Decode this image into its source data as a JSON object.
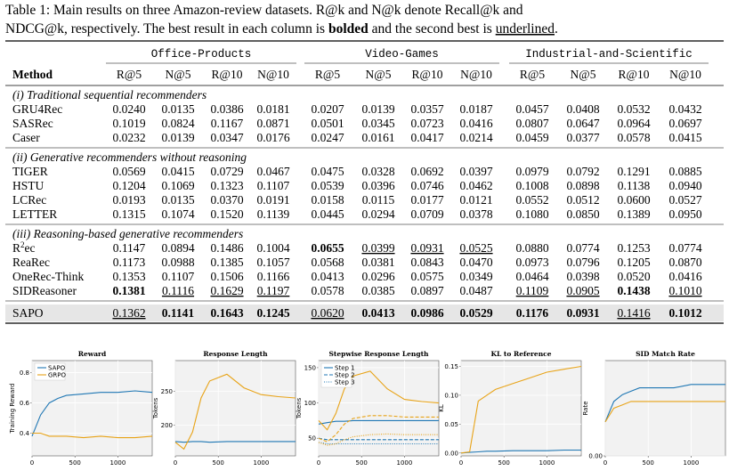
{
  "caption": [
    [
      {
        "text": "Table 1: Main results on three Amazon-review datasets. R@k and N@k denote Recall@k and"
      }
    ],
    [
      {
        "text": "NDCG@k, respectively. The best result in each column is "
      },
      {
        "text": "bolded",
        "style": "bold"
      },
      {
        "text": " and the second best is "
      },
      {
        "text": "underlined",
        "style": "underline"
      },
      {
        "text": "."
      }
    ]
  ],
  "table": {
    "method": "Method",
    "datasets": [
      "Office-Products",
      "Video-Games",
      "Industrial-and-Scientific"
    ],
    "metrics": [
      "R@5",
      "N@5",
      "R@10",
      "N@10"
    ],
    "groups": [
      {
        "label": "(i) Traditional sequential recommenders",
        "rows": [
          {
            "name": "GRU4Rec",
            "values": [
              "0.0240",
              "0.0135",
              "0.0386",
              "0.0181",
              "0.0207",
              "0.0139",
              "0.0357",
              "0.0187",
              "0.0457",
              "0.0408",
              "0.0532",
              "0.0432"
            ]
          },
          {
            "name": "SASRec",
            "values": [
              "0.1019",
              "0.0824",
              "0.1167",
              "0.0871",
              "0.0501",
              "0.0345",
              "0.0723",
              "0.0416",
              "0.0807",
              "0.0647",
              "0.0964",
              "0.0697"
            ]
          },
          {
            "name": "Caser",
            "values": [
              "0.0232",
              "0.0139",
              "0.0347",
              "0.0176",
              "0.0247",
              "0.0161",
              "0.0417",
              "0.0214",
              "0.0459",
              "0.0377",
              "0.0578",
              "0.0415"
            ]
          }
        ]
      },
      {
        "label": "(ii) Generative recommenders without reasoning",
        "rows": [
          {
            "name": "TIGER",
            "values": [
              "0.0569",
              "0.0415",
              "0.0729",
              "0.0467",
              "0.0475",
              "0.0328",
              "0.0692",
              "0.0397",
              "0.0979",
              "0.0792",
              "0.1291",
              "0.0885"
            ]
          },
          {
            "name": "HSTU",
            "values": [
              "0.1204",
              "0.1069",
              "0.1323",
              "0.1107",
              "0.0539",
              "0.0396",
              "0.0746",
              "0.0462",
              "0.1008",
              "0.0898",
              "0.1138",
              "0.0940"
            ]
          },
          {
            "name": "LCRec",
            "values": [
              "0.0193",
              "0.0135",
              "0.0370",
              "0.0191",
              "0.0158",
              "0.0115",
              "0.0177",
              "0.0121",
              "0.0552",
              "0.0512",
              "0.0600",
              "0.0527"
            ]
          },
          {
            "name": "LETTER",
            "values": [
              "0.1315",
              "0.1074",
              "0.1520",
              "0.1139",
              "0.0445",
              "0.0294",
              "0.0709",
              "0.0378",
              "0.1080",
              "0.0850",
              "0.1389",
              "0.0950"
            ]
          }
        ]
      },
      {
        "label": "(iii) Reasoning-based generative recommenders",
        "rows": [
          {
            "name": [
              "R",
              "2",
              "ec"
            ],
            "values": [
              "0.1147",
              "0.0894",
              "0.1486",
              "0.1004",
              "0.0655",
              "0.0399",
              "0.0931",
              "0.0525",
              "0.0880",
              "0.0774",
              "0.1253",
              "0.0774"
            ],
            "bold": [
              4
            ],
            "underline": [
              5,
              6,
              7
            ]
          },
          {
            "name": "ReaRec",
            "values": [
              "0.1173",
              "0.0988",
              "0.1385",
              "0.1057",
              "0.0568",
              "0.0381",
              "0.0843",
              "0.0470",
              "0.0973",
              "0.0796",
              "0.1205",
              "0.0870"
            ]
          },
          {
            "name": "OneRec-Think",
            "values": [
              "0.1353",
              "0.1107",
              "0.1506",
              "0.1166",
              "0.0413",
              "0.0296",
              "0.0575",
              "0.0349",
              "0.0464",
              "0.0398",
              "0.0520",
              "0.0416"
            ]
          },
          {
            "name": "SIDReasoner",
            "values": [
              "0.1381",
              "0.1116",
              "0.1629",
              "0.1197",
              "0.0578",
              "0.0385",
              "0.0897",
              "0.0487",
              "0.1109",
              "0.0905",
              "0.1438",
              "0.1010"
            ],
            "bold": [
              0,
              10
            ],
            "underline": [
              1,
              2,
              3,
              8,
              9,
              11
            ]
          }
        ]
      },
      {
        "highlight": true,
        "rows": [
          {
            "name": "SAPO",
            "values": [
              "0.1362",
              "0.1141",
              "0.1643",
              "0.1245",
              "0.0620",
              "0.0413",
              "0.0986",
              "0.0529",
              "0.1176",
              "0.0931",
              "0.1416",
              "0.1012"
            ],
            "bold": [
              1,
              2,
              3,
              5,
              6,
              7,
              8,
              9,
              11
            ],
            "underline": [
              0,
              4,
              10
            ]
          }
        ]
      }
    ]
  },
  "chart_data": [
    {
      "type": "line",
      "title": "Reward",
      "ylabel": "Training Reward",
      "x": [
        0,
        100,
        200,
        300,
        400,
        600,
        800,
        1000,
        1200,
        1400
      ],
      "xlim": [
        0,
        1400
      ],
      "xticks": [
        0,
        500,
        1000
      ],
      "ylim": [
        0.25,
        0.88
      ],
      "yticks": [
        0.4,
        0.6,
        0.8
      ],
      "grid": true,
      "legend": "upper left",
      "series": [
        {
          "name": "SAPO",
          "color": "#1f77b4",
          "values": [
            0.38,
            0.52,
            0.6,
            0.63,
            0.65,
            0.66,
            0.67,
            0.67,
            0.68,
            0.67
          ]
        },
        {
          "name": "GRPO",
          "color": "#e8a317",
          "values": [
            0.4,
            0.4,
            0.38,
            0.38,
            0.38,
            0.37,
            0.38,
            0.37,
            0.37,
            0.38
          ]
        }
      ]
    },
    {
      "type": "line",
      "title": "Response Length",
      "ylabel": "Tokens",
      "x": [
        0,
        100,
        200,
        300,
        400,
        600,
        800,
        1000,
        1200,
        1400
      ],
      "xlim": [
        0,
        1400
      ],
      "xticks": [
        0,
        500,
        1000
      ],
      "ylim": [
        155,
        295
      ],
      "yticks": [
        200,
        250
      ],
      "grid": true,
      "series": [
        {
          "color": "#1f77b4",
          "values": [
            176,
            175,
            176,
            176,
            175,
            176,
            176,
            176,
            176,
            176
          ]
        },
        {
          "color": "#e8a317",
          "values": [
            175,
            165,
            190,
            240,
            265,
            275,
            255,
            245,
            242,
            240
          ]
        }
      ]
    },
    {
      "type": "line",
      "title": "Stepwise Response Length",
      "ylabel": "Tokens",
      "x": [
        0,
        100,
        200,
        300,
        400,
        600,
        800,
        1000,
        1200,
        1400
      ],
      "xlim": [
        0,
        1400
      ],
      "xticks": [
        0,
        500,
        1000
      ],
      "ylim": [
        25,
        160
      ],
      "yticks": [
        50,
        100,
        150
      ],
      "grid": true,
      "legend": "upper left",
      "series": [
        {
          "name": "Step 1",
          "color": "#1f77b4",
          "dash": "solid",
          "values": [
            70,
            72,
            74,
            74,
            75,
            75,
            75,
            75,
            75,
            75
          ]
        },
        {
          "name": "Step 2",
          "color": "#1f77b4",
          "dash": "dashed",
          "values": [
            50,
            48,
            48,
            48,
            48,
            48,
            48,
            48,
            48,
            48
          ]
        },
        {
          "name": "Step 3",
          "color": "#1f77b4",
          "dash": "dotted",
          "values": [
            44,
            42,
            42,
            42,
            42,
            42,
            42,
            42,
            42,
            42
          ]
        },
        {
          "color": "#e8a317",
          "dash": "solid",
          "values": [
            75,
            62,
            85,
            120,
            138,
            145,
            120,
            105,
            102,
            100
          ]
        },
        {
          "color": "#e8a317",
          "dash": "dashed",
          "values": [
            50,
            45,
            55,
            70,
            78,
            82,
            82,
            80,
            80,
            80
          ]
        },
        {
          "color": "#e8a317",
          "dash": "dotted",
          "values": [
            44,
            40,
            42,
            48,
            52,
            55,
            56,
            55,
            55,
            55
          ]
        }
      ]
    },
    {
      "type": "line",
      "title": "KL to Reference",
      "ylabel": "KL",
      "x": [
        0,
        100,
        200,
        300,
        400,
        600,
        800,
        1000,
        1200,
        1400
      ],
      "xlim": [
        0,
        1400
      ],
      "xticks": [
        0,
        500,
        1000
      ],
      "ylim": [
        -0.005,
        0.16
      ],
      "yticks": [
        {
          "value": 0,
          "label": "0.00"
        },
        {
          "value": 0.05,
          "label": "0.05"
        },
        {
          "value": 0.1,
          "label": "0.10"
        },
        {
          "value": 0.15,
          "label": "0.15"
        }
      ],
      "grid": true,
      "series": [
        {
          "color": "#1f77b4",
          "values": [
            0,
            0.001,
            0.002,
            0.003,
            0.003,
            0.004,
            0.004,
            0.004,
            0.005,
            0.005
          ]
        },
        {
          "color": "#e8a317",
          "values": [
            0,
            0.002,
            0.09,
            0.1,
            0.11,
            0.12,
            0.13,
            0.14,
            0.145,
            0.15
          ]
        }
      ]
    },
    {
      "type": "line",
      "title": "SID Match Rate",
      "ylabel": "Rate",
      "x": [
        0,
        100,
        200,
        300,
        400,
        600,
        800,
        1000,
        1200,
        1400
      ],
      "xlim": [
        0,
        1400
      ],
      "xticks": [
        0,
        500,
        1000
      ],
      "ylim": [
        0,
        0.14
      ],
      "yticks": [
        {
          "value": 0,
          "label": "0.00"
        }
      ],
      "grid": true,
      "series": [
        {
          "color": "#1f77b4",
          "values": [
            0.05,
            0.08,
            0.09,
            0.095,
            0.1,
            0.1,
            0.1,
            0.105,
            0.105,
            0.105
          ]
        },
        {
          "color": "#e8a317",
          "values": [
            0.05,
            0.07,
            0.075,
            0.08,
            0.08,
            0.08,
            0.08,
            0.08,
            0.08,
            0.08
          ]
        }
      ]
    }
  ]
}
